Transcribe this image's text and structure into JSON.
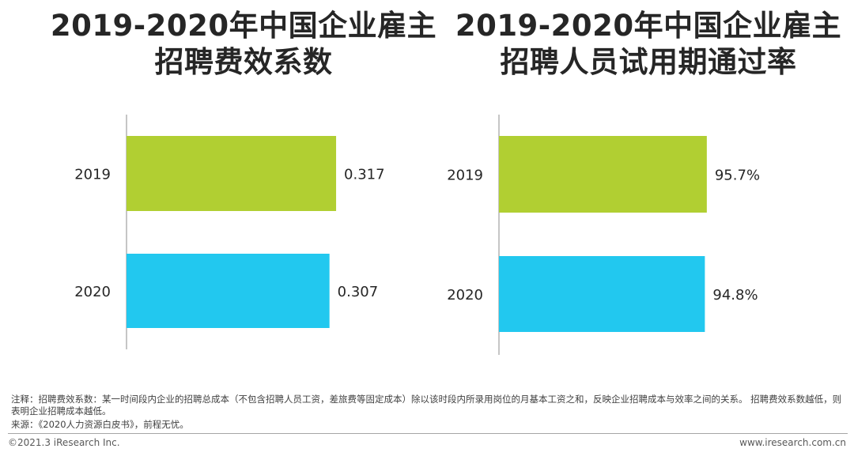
{
  "chart_data": [
    {
      "type": "bar",
      "orientation": "horizontal",
      "title_lines": [
        "2019-2020年中国企业雇主",
        "招聘费效系数"
      ],
      "categories": [
        "2019",
        "2020"
      ],
      "values": [
        0.317,
        0.307
      ],
      "value_labels": [
        "0.317",
        "0.307"
      ],
      "colors": [
        "#b1cf32",
        "#22c8ef"
      ],
      "xlim": [
        0,
        0.36
      ]
    },
    {
      "type": "bar",
      "orientation": "horizontal",
      "title_lines": [
        "2019-2020年中国企业雇主",
        "招聘人员试用期通过率"
      ],
      "categories": [
        "2019",
        "2020"
      ],
      "values": [
        95.7,
        94.8
      ],
      "value_labels": [
        "95.7%",
        "94.8%"
      ],
      "colors": [
        "#b1cf32",
        "#22c8ef"
      ],
      "xlim": [
        0,
        107.4
      ]
    }
  ],
  "notes": {
    "note": "注释：招聘费效系数：某一时间段内企业的招聘总成本（不包含招聘人员工资，差旅费等固定成本）除以该时段内所录用岗位的月基本工资之和，反映企业招聘成本与效率之间的关系。 招聘费效系数越低，则表明企业招聘成本越低。",
    "source": "来源：《2020人力资源白皮书》，前程无忧。"
  },
  "footer": {
    "copyright": "©2021.3 iResearch Inc.",
    "website": "www.iresearch.com.cn"
  }
}
